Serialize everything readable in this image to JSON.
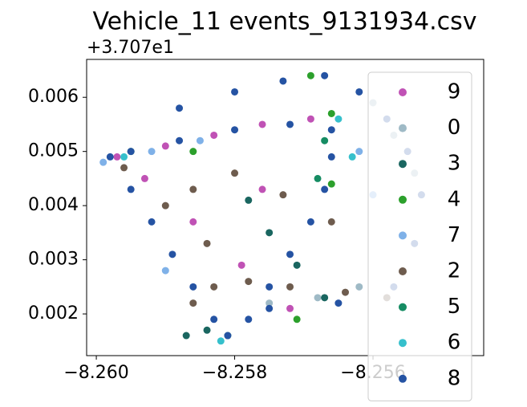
{
  "chart_data": {
    "type": "scatter",
    "title": "Vehicle_11 events_9131934.csv",
    "y_offset_label": "+3.707e1",
    "xlim": [
      -8.26014,
      -8.2544
    ],
    "ylim": [
      0.00123,
      0.0067
    ],
    "xticks": [
      {
        "value": -8.26,
        "label": "−8.260"
      },
      {
        "value": -8.258,
        "label": "−8.258"
      },
      {
        "value": -8.256,
        "label": "−8.256"
      }
    ],
    "yticks": [
      0.002,
      0.003,
      0.004,
      0.005,
      0.006
    ],
    "grid": false,
    "legend": "right",
    "series": [
      {
        "name": "9",
        "color": "#c052b5",
        "x": [
          -8.2597,
          -8.259,
          -8.2583,
          -8.2576,
          -8.2569,
          -8.2593,
          -8.2586,
          -8.2579,
          -8.2572,
          -8.2576
        ],
        "y": [
          0.0049,
          0.0051,
          0.0053,
          0.0055,
          0.0056,
          0.0045,
          0.0037,
          0.0029,
          0.0021,
          0.0043
        ]
      },
      {
        "name": "0",
        "color": "#9fbac6",
        "x": [
          -8.256,
          -8.2557,
          -8.2554,
          -8.2562,
          -8.2568,
          -8.2575
        ],
        "y": [
          0.0059,
          0.0053,
          0.0046,
          0.0025,
          0.0023,
          0.0022
        ]
      },
      {
        "name": "3",
        "color": "#1a6660",
        "x": [
          -8.2578,
          -8.2575,
          -8.2571,
          -8.2567,
          -8.2584,
          -8.2587
        ],
        "y": [
          0.0041,
          0.0035,
          0.0029,
          0.0023,
          0.0017,
          0.0016
        ]
      },
      {
        "name": "4",
        "color": "#2ca02c",
        "x": [
          -8.2566,
          -8.2569,
          -8.2586,
          -8.2595,
          -8.2566,
          -8.2571
        ],
        "y": [
          0.0057,
          0.0064,
          0.005,
          0.005,
          0.0044,
          0.0019
        ]
      },
      {
        "name": "7",
        "color": "#7fb1e8",
        "x": [
          -8.2599,
          -8.2592,
          -8.2585,
          -8.2562,
          -8.256,
          -8.259
        ],
        "y": [
          0.0048,
          0.005,
          0.0052,
          0.005,
          0.0042,
          0.0028
        ]
      },
      {
        "name": "2",
        "color": "#6e5c4e",
        "x": [
          -8.2596,
          -8.259,
          -8.2584,
          -8.2578,
          -8.2572,
          -8.2564,
          -8.2558,
          -8.2586,
          -8.258,
          -8.2573,
          -8.2566,
          -8.2583,
          -8.2586
        ],
        "y": [
          0.0047,
          0.004,
          0.0033,
          0.0026,
          0.0025,
          0.0024,
          0.0023,
          0.0043,
          0.0046,
          0.0042,
          0.0037,
          0.0025,
          0.0022
        ]
      },
      {
        "name": "5",
        "color": "#168c63",
        "x": [
          -8.2581,
          -8.2567,
          -8.2568
        ],
        "y": [
          0.0016,
          0.0052,
          0.0045
        ]
      },
      {
        "name": "6",
        "color": "#36c0cc",
        "x": [
          -8.2582,
          -8.2565,
          -8.2563,
          -8.2596
        ],
        "y": [
          0.0015,
          0.0056,
          0.0049,
          0.0049
        ]
      },
      {
        "name": "8",
        "color": "#2553a3",
        "x": [
          -8.2598,
          -8.2595,
          -8.2592,
          -8.2589,
          -8.2586,
          -8.2583,
          -8.2581,
          -8.2578,
          -8.2575,
          -8.2572,
          -8.2569,
          -8.2567,
          -8.2566,
          -8.2566,
          -8.2572,
          -8.258,
          -8.2588,
          -8.2595,
          -8.2588,
          -8.258,
          -8.2573,
          -8.2567,
          -8.2562,
          -8.2558,
          -8.2555,
          -8.2553,
          -8.2554,
          -8.2557,
          -8.2565,
          -8.2575
        ],
        "y": [
          0.0049,
          0.0043,
          0.0037,
          0.0031,
          0.0025,
          0.0019,
          0.0016,
          0.0019,
          0.0025,
          0.0031,
          0.0037,
          0.0043,
          0.0049,
          0.0054,
          0.0055,
          0.0054,
          0.0052,
          0.005,
          0.0058,
          0.0061,
          0.0063,
          0.0064,
          0.0061,
          0.0056,
          0.005,
          0.0042,
          0.0033,
          0.0025,
          0.0022,
          0.0021
        ]
      }
    ]
  }
}
